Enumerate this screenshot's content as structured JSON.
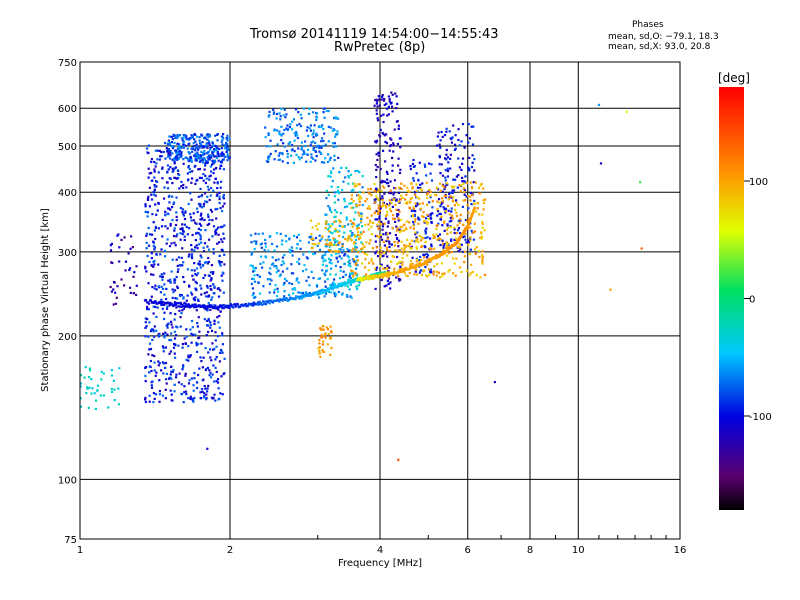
{
  "title_line1": "Tromsø 20141119 14:54:00−14:55:43",
  "title_line2": "RwPretec (8p)",
  "phase_legend": {
    "heading": "Phases",
    "line_o": "mean, sd,O: −79.1, 18.3",
    "line_x": "mean, sd,X:  93.0, 20.8"
  },
  "chart_data": {
    "type": "scatter",
    "xlabel": "Frequency [MHz]",
    "ylabel": "Stationary phase Virtual Height [km]",
    "xscale": "log",
    "yscale": "log",
    "xlim": [
      1,
      16
    ],
    "ylim": [
      75,
      750
    ],
    "xticks": [
      1,
      2,
      4,
      6,
      8,
      10,
      16
    ],
    "yticks": [
      75,
      100,
      200,
      300,
      400,
      500,
      600,
      750
    ],
    "grid": true,
    "colorbar": {
      "label": "[deg]",
      "range": [
        -180,
        180
      ],
      "ticks": [
        100,
        0,
        -100
      ]
    },
    "clusters": [
      {
        "f": [
          1.35,
          1.95
        ],
        "h": [
          145,
          510
        ],
        "phase": [
          -120,
          -70
        ],
        "n": 900
      },
      {
        "f": [
          1.5,
          2.0
        ],
        "h": [
          460,
          530
        ],
        "phase": [
          -100,
          -60
        ],
        "n": 250
      },
      {
        "f": [
          2.35,
          3.3
        ],
        "h": [
          460,
          600
        ],
        "phase": [
          -90,
          -50
        ],
        "n": 200
      },
      {
        "f": [
          2.2,
          3.6
        ],
        "h": [
          240,
          330
        ],
        "phase": [
          -90,
          -40
        ],
        "n": 260
      },
      {
        "f": [
          3.1,
          3.7
        ],
        "h": [
          250,
          460
        ],
        "phase": [
          -70,
          -20
        ],
        "n": 160
      },
      {
        "f": [
          3.9,
          4.4
        ],
        "h": [
          250,
          650
        ],
        "phase": [
          -130,
          -100
        ],
        "n": 220
      },
      {
        "f": [
          4.6,
          5.1
        ],
        "h": [
          270,
          470
        ],
        "phase": [
          -110,
          -80
        ],
        "n": 100
      },
      {
        "f": [
          5.2,
          6.2
        ],
        "h": [
          300,
          560
        ],
        "phase": [
          -120,
          -80
        ],
        "n": 180
      },
      {
        "f": [
          3.5,
          6.5
        ],
        "h": [
          265,
          420
        ],
        "phase": [
          70,
          120
        ],
        "n": 520
      },
      {
        "f": [
          2.9,
          3.6
        ],
        "h": [
          300,
          350
        ],
        "phase": [
          80,
          110
        ],
        "n": 60
      },
      {
        "f": [
          3.0,
          3.2
        ],
        "h": [
          180,
          210
        ],
        "phase": [
          90,
          120
        ],
        "n": 40
      },
      {
        "f": [
          1.0,
          1.2
        ],
        "h": [
          140,
          175
        ],
        "phase": [
          -40,
          -20
        ],
        "n": 40
      },
      {
        "f": [
          1.15,
          1.3
        ],
        "h": [
          230,
          330
        ],
        "phase": [
          -150,
          -100
        ],
        "n": 40
      }
    ],
    "trace_o": {
      "freq": [
        1.35,
        1.6,
        1.8,
        2.0,
        2.3,
        2.7,
        3.0,
        3.3,
        3.6,
        3.9,
        4.1
      ],
      "height": [
        236,
        232,
        230,
        231,
        234,
        240,
        246,
        255,
        262,
        268,
        272
      ],
      "phase": [
        -110,
        -100,
        -100,
        -95,
        -80,
        -65,
        -55,
        -45,
        -30,
        -20,
        -10
      ]
    },
    "trace_x": {
      "freq": [
        3.6,
        3.9,
        4.2,
        4.5,
        4.9,
        5.3,
        5.7,
        6.0,
        6.2
      ],
      "height": [
        262,
        266,
        270,
        276,
        284,
        296,
        314,
        340,
        372
      ],
      "phase": [
        60,
        80,
        90,
        100,
        100,
        105,
        110,
        105,
        100
      ]
    },
    "outliers": [
      {
        "f": 6.8,
        "h": 160,
        "phase": -120
      },
      {
        "f": 11.1,
        "h": 460,
        "phase": -120
      },
      {
        "f": 11.0,
        "h": 610,
        "phase": -60
      },
      {
        "f": 12.5,
        "h": 590,
        "phase": 60
      },
      {
        "f": 13.3,
        "h": 420,
        "phase": 20
      },
      {
        "f": 13.4,
        "h": 305,
        "phase": 130
      },
      {
        "f": 11.6,
        "h": 250,
        "phase": 100
      },
      {
        "f": 4.35,
        "h": 110,
        "phase": 140
      },
      {
        "f": 1.8,
        "h": 116,
        "phase": -110
      }
    ]
  }
}
